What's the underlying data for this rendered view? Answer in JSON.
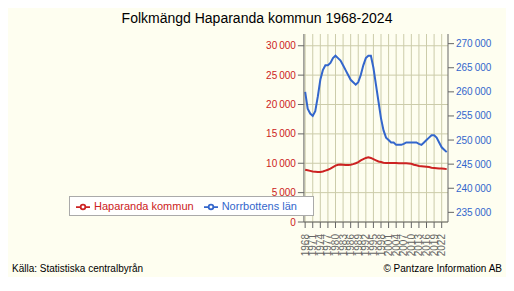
{
  "chart_data": {
    "type": "line",
    "title": "Folkmängd Haparanda kommun 1968-2024",
    "x": [
      1968,
      1969,
      1970,
      1971,
      1972,
      1973,
      1974,
      1975,
      1976,
      1977,
      1978,
      1979,
      1980,
      1981,
      1982,
      1983,
      1984,
      1985,
      1986,
      1987,
      1988,
      1989,
      1990,
      1991,
      1992,
      1993,
      1994,
      1995,
      1996,
      1997,
      1998,
      1999,
      2000,
      2001,
      2002,
      2003,
      2004,
      2005,
      2006,
      2007,
      2008,
      2009,
      2010,
      2011,
      2012,
      2013,
      2014,
      2015,
      2016,
      2017,
      2018,
      2019,
      2020,
      2021,
      2022,
      2023,
      2024
    ],
    "series": [
      {
        "name": "Haparanda kommun",
        "color": "#cc2222",
        "values": [
          8900,
          8800,
          8700,
          8600,
          8550,
          8500,
          8500,
          8600,
          8750,
          8900,
          9100,
          9350,
          9600,
          9750,
          9800,
          9750,
          9700,
          9700,
          9750,
          9850,
          10000,
          10200,
          10500,
          10700,
          10900,
          11000,
          10900,
          10700,
          10500,
          10300,
          10200,
          10100,
          10050,
          10050,
          10050,
          10050,
          10050,
          10000,
          10000,
          10000,
          10000,
          9950,
          9900,
          9750,
          9650,
          9550,
          9500,
          9450,
          9400,
          9350,
          9250,
          9200,
          9150,
          9100,
          9100,
          9050,
          9000
        ]
      },
      {
        "name": "Norrbottens län",
        "color": "#3366cc",
        "axis": "y2",
        "values": [
          260000,
          256500,
          255500,
          255000,
          256000,
          259000,
          262500,
          264500,
          265500,
          265500,
          266000,
          267000,
          267500,
          267000,
          266500,
          265500,
          264500,
          263500,
          262500,
          262000,
          261500,
          262000,
          263500,
          265500,
          267000,
          267500,
          267500,
          265000,
          261500,
          258000,
          254500,
          252000,
          250500,
          250000,
          249500,
          249500,
          249000,
          249000,
          249000,
          249200,
          249500,
          249500,
          249500,
          249500,
          249500,
          249200,
          249000,
          249500,
          250000,
          250500,
          251000,
          251000,
          250500,
          249500,
          248500,
          248000,
          247500
        ]
      }
    ],
    "xlim": [
      1967.5,
      2024.5
    ],
    "xticks": [
      1968,
      1971,
      1974,
      1977,
      1980,
      1983,
      1986,
      1989,
      1992,
      1995,
      1998,
      2001,
      2004,
      2007,
      2010,
      2013,
      2016,
      2019,
      2022
    ],
    "ylim": [
      0,
      32000
    ],
    "yticks": [
      0,
      {
        "value": 5000,
        "label": "5 000"
      },
      {
        "value": 10000,
        "label": "10 000"
      },
      {
        "value": 15000,
        "label": "15 000"
      },
      {
        "value": 20000,
        "label": "20 000"
      },
      {
        "value": 25000,
        "label": "25 000"
      },
      {
        "value": 30000,
        "label": "30 000"
      }
    ],
    "y2lim": [
      233000,
      272000
    ],
    "y2ticks": [
      {
        "value": 235000,
        "label": "235 000"
      },
      {
        "value": 240000,
        "label": "240 000"
      },
      {
        "value": 245000,
        "label": "245 000"
      },
      {
        "value": 250000,
        "label": "250 000"
      },
      {
        "value": 255000,
        "label": "255 000"
      },
      {
        "value": 260000,
        "label": "260 000"
      },
      {
        "value": 265000,
        "label": "265 000"
      },
      {
        "value": 270000,
        "label": "270 000"
      }
    ],
    "grid": true,
    "legend": "lower left",
    "annotations": [
      "Källa: Statistiska centralbyrån",
      "© Pantzare Information AB"
    ]
  }
}
